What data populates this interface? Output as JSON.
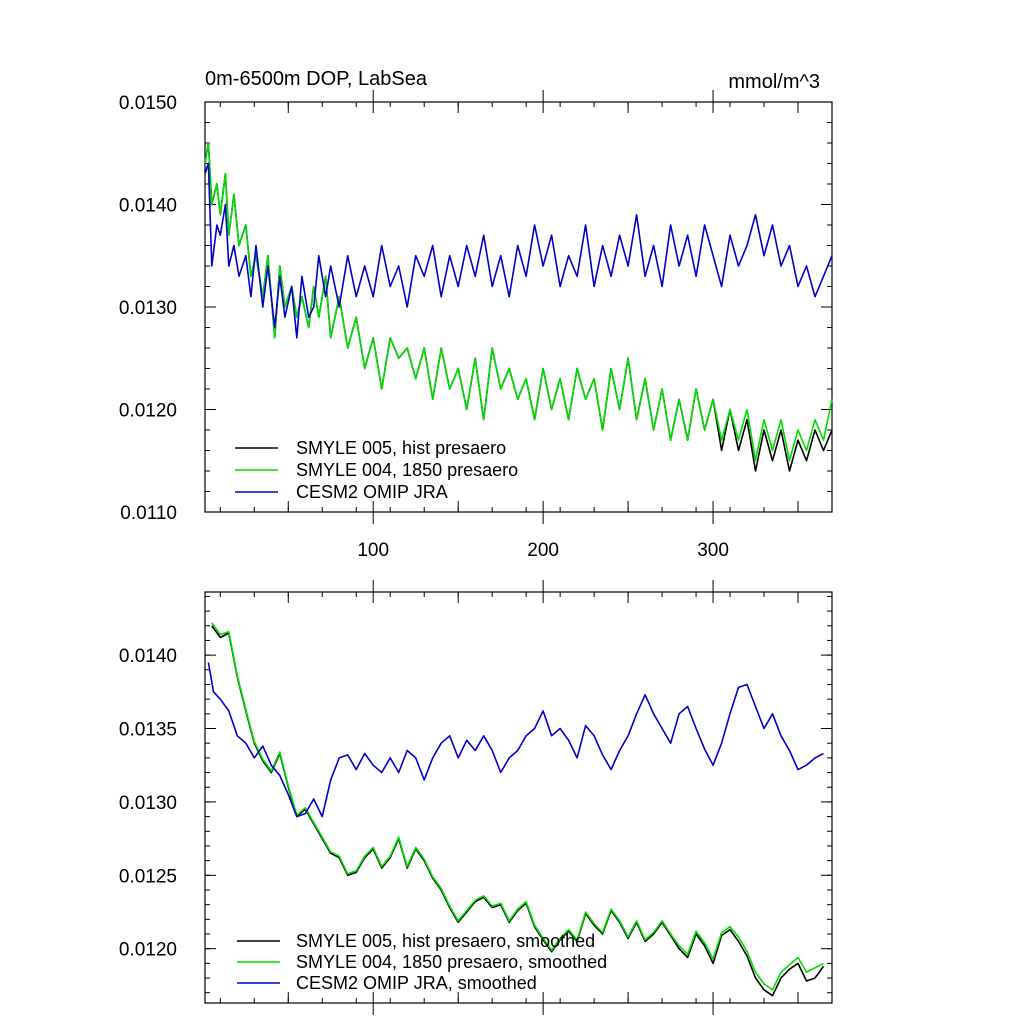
{
  "chart_data": [
    {
      "type": "line",
      "title": "0m-6500m DOP, LabSea",
      "units": "mmol/m^3",
      "xlim": [
        1,
        370
      ],
      "ylim": [
        0.011,
        0.015
      ],
      "x_ticks": [
        100,
        200,
        300
      ],
      "x_tick_labels": [
        "100",
        "200",
        "300"
      ],
      "y_ticks": [
        0.011,
        0.012,
        0.013,
        0.014,
        0.015
      ],
      "y_tick_labels": [
        "0.0110",
        "0.0120",
        "0.0130",
        "0.0140",
        "0.0150"
      ],
      "legend_position": "bottom-left",
      "series": [
        {
          "name": "SMYLE 005, hist presaero",
          "color": "#000000",
          "x": [
            1,
            3,
            5,
            8,
            10,
            13,
            15,
            18,
            21,
            25,
            28,
            31,
            35,
            38,
            42,
            45,
            48,
            52,
            55,
            58,
            62,
            65,
            68,
            72,
            75,
            80,
            85,
            90,
            95,
            100,
            105,
            110,
            115,
            120,
            125,
            130,
            135,
            140,
            145,
            150,
            155,
            160,
            165,
            170,
            175,
            180,
            185,
            190,
            195,
            200,
            205,
            210,
            215,
            220,
            225,
            230,
            235,
            240,
            245,
            250,
            255,
            260,
            265,
            270,
            275,
            280,
            285,
            290,
            295,
            300,
            305,
            310,
            315,
            320,
            325,
            330,
            335,
            340,
            345,
            350,
            355,
            360,
            365,
            370
          ],
          "values": [
            0.0144,
            0.0146,
            0.014,
            0.0142,
            0.0139,
            0.0143,
            0.0137,
            0.0141,
            0.0136,
            0.0138,
            0.0133,
            0.0135,
            0.0131,
            0.0135,
            0.0127,
            0.0134,
            0.013,
            0.0132,
            0.0129,
            0.0131,
            0.0128,
            0.0132,
            0.0129,
            0.0133,
            0.0127,
            0.0131,
            0.0126,
            0.0129,
            0.0124,
            0.0127,
            0.0122,
            0.0127,
            0.0125,
            0.0126,
            0.0123,
            0.0126,
            0.0121,
            0.0126,
            0.0122,
            0.0124,
            0.012,
            0.0125,
            0.0119,
            0.0126,
            0.0122,
            0.0124,
            0.0121,
            0.0123,
            0.0119,
            0.0124,
            0.012,
            0.0123,
            0.0119,
            0.0124,
            0.0121,
            0.0123,
            0.0118,
            0.0124,
            0.012,
            0.0125,
            0.0119,
            0.0123,
            0.0118,
            0.0122,
            0.0117,
            0.0121,
            0.0117,
            0.0122,
            0.0118,
            0.0121,
            0.0116,
            0.012,
            0.0116,
            0.0119,
            0.0114,
            0.0118,
            0.0115,
            0.0118,
            0.0114,
            0.0117,
            0.0115,
            0.0118,
            0.0116,
            0.0118
          ]
        },
        {
          "name": "SMYLE 004, 1850 presaero",
          "color": "#00dd00",
          "x": [
            1,
            3,
            5,
            8,
            10,
            13,
            15,
            18,
            21,
            25,
            28,
            31,
            35,
            38,
            42,
            45,
            48,
            52,
            55,
            58,
            62,
            65,
            68,
            72,
            75,
            80,
            85,
            90,
            95,
            100,
            105,
            110,
            115,
            120,
            125,
            130,
            135,
            140,
            145,
            150,
            155,
            160,
            165,
            170,
            175,
            180,
            185,
            190,
            195,
            200,
            205,
            210,
            215,
            220,
            225,
            230,
            235,
            240,
            245,
            250,
            255,
            260,
            265,
            270,
            275,
            280,
            285,
            290,
            295,
            300,
            305,
            310,
            315,
            320,
            325,
            330,
            335,
            340,
            345,
            350,
            355,
            360,
            365,
            370
          ],
          "values": [
            0.0144,
            0.0146,
            0.014,
            0.0142,
            0.0139,
            0.0143,
            0.0137,
            0.0141,
            0.0136,
            0.0138,
            0.0133,
            0.0135,
            0.0131,
            0.0135,
            0.0127,
            0.0134,
            0.013,
            0.0132,
            0.0129,
            0.0131,
            0.0128,
            0.0132,
            0.0129,
            0.0133,
            0.0127,
            0.0131,
            0.0126,
            0.0129,
            0.0124,
            0.0127,
            0.0122,
            0.0127,
            0.0125,
            0.0126,
            0.0123,
            0.0126,
            0.0121,
            0.0126,
            0.0122,
            0.0124,
            0.012,
            0.0125,
            0.0119,
            0.0126,
            0.0122,
            0.0124,
            0.0121,
            0.0123,
            0.0119,
            0.0124,
            0.012,
            0.0123,
            0.0119,
            0.0124,
            0.0121,
            0.0123,
            0.0118,
            0.0124,
            0.012,
            0.0125,
            0.0119,
            0.0123,
            0.0118,
            0.0122,
            0.0117,
            0.0121,
            0.0117,
            0.0122,
            0.0118,
            0.0121,
            0.0117,
            0.012,
            0.0117,
            0.012,
            0.0115,
            0.0119,
            0.0116,
            0.0119,
            0.0115,
            0.0118,
            0.0116,
            0.0119,
            0.0117,
            0.0121
          ]
        },
        {
          "name": "CESM2 OMIP JRA",
          "color": "#0000cc",
          "x": [
            1,
            3,
            5,
            8,
            10,
            13,
            15,
            18,
            21,
            25,
            28,
            31,
            35,
            38,
            42,
            45,
            48,
            52,
            55,
            58,
            62,
            65,
            68,
            72,
            75,
            80,
            85,
            90,
            95,
            100,
            105,
            110,
            115,
            120,
            125,
            130,
            135,
            140,
            145,
            150,
            155,
            160,
            165,
            170,
            175,
            180,
            185,
            190,
            195,
            200,
            205,
            210,
            215,
            220,
            225,
            230,
            235,
            240,
            245,
            250,
            255,
            260,
            265,
            270,
            275,
            280,
            285,
            290,
            295,
            300,
            305,
            310,
            315,
            320,
            325,
            330,
            335,
            340,
            345,
            350,
            355,
            360,
            365,
            370
          ],
          "values": [
            0.0143,
            0.0144,
            0.0134,
            0.0138,
            0.0137,
            0.014,
            0.0134,
            0.0136,
            0.0133,
            0.0135,
            0.0131,
            0.0136,
            0.013,
            0.0134,
            0.0128,
            0.0133,
            0.0129,
            0.0132,
            0.0127,
            0.0133,
            0.0129,
            0.013,
            0.0135,
            0.0131,
            0.0134,
            0.013,
            0.0135,
            0.0131,
            0.0134,
            0.0131,
            0.0136,
            0.0132,
            0.0134,
            0.013,
            0.0135,
            0.0133,
            0.0136,
            0.0131,
            0.0135,
            0.0132,
            0.0136,
            0.0133,
            0.0137,
            0.0132,
            0.0135,
            0.0131,
            0.0136,
            0.0133,
            0.0138,
            0.0134,
            0.0137,
            0.0132,
            0.0135,
            0.0133,
            0.0138,
            0.0132,
            0.0136,
            0.0133,
            0.0137,
            0.0134,
            0.0139,
            0.0133,
            0.0136,
            0.0132,
            0.0138,
            0.0134,
            0.0137,
            0.0133,
            0.0138,
            0.0135,
            0.0132,
            0.0137,
            0.0134,
            0.0136,
            0.0139,
            0.0135,
            0.0138,
            0.0134,
            0.0136,
            0.0132,
            0.0134,
            0.0131,
            0.0133,
            0.0135
          ]
        }
      ]
    },
    {
      "type": "line",
      "title": "",
      "units": "",
      "xlim": [
        1,
        370
      ],
      "ylim": [
        0.01163,
        0.01443
      ],
      "x_ticks": [
        100,
        200,
        300
      ],
      "x_tick_labels": [
        "",
        "",
        ""
      ],
      "y_ticks": [
        0.012,
        0.0125,
        0.013,
        0.0135,
        0.014
      ],
      "y_tick_labels": [
        "0.0120",
        "0.0125",
        "0.0130",
        "0.0135",
        "0.0140"
      ],
      "legend_position": "bottom-left",
      "series": [
        {
          "name": "SMYLE 005, hist presaero, smoothed",
          "color": "#000000",
          "x": [
            5,
            10,
            15,
            20,
            25,
            30,
            35,
            40,
            45,
            50,
            55,
            60,
            65,
            70,
            75,
            80,
            85,
            90,
            95,
            100,
            105,
            110,
            115,
            120,
            125,
            130,
            135,
            140,
            145,
            150,
            155,
            160,
            165,
            170,
            175,
            180,
            185,
            190,
            195,
            200,
            205,
            210,
            215,
            220,
            225,
            230,
            235,
            240,
            245,
            250,
            255,
            260,
            265,
            270,
            275,
            280,
            285,
            290,
            295,
            300,
            305,
            310,
            315,
            320,
            325,
            330,
            335,
            340,
            345,
            350,
            355,
            360,
            365
          ],
          "values": [
            0.0142,
            0.01412,
            0.01415,
            0.01385,
            0.01362,
            0.0134,
            0.01328,
            0.0132,
            0.01333,
            0.0131,
            0.0129,
            0.01295,
            0.01285,
            0.01275,
            0.01265,
            0.01262,
            0.0125,
            0.01252,
            0.01262,
            0.01268,
            0.01255,
            0.01262,
            0.01275,
            0.01255,
            0.01268,
            0.0126,
            0.01248,
            0.0124,
            0.01228,
            0.01218,
            0.01225,
            0.01232,
            0.01235,
            0.01228,
            0.0123,
            0.01218,
            0.01226,
            0.01231,
            0.01215,
            0.01206,
            0.01198,
            0.01206,
            0.01212,
            0.01205,
            0.01224,
            0.01216,
            0.0121,
            0.01226,
            0.01218,
            0.01207,
            0.01218,
            0.01205,
            0.0121,
            0.01218,
            0.01209,
            0.012,
            0.01194,
            0.0121,
            0.01202,
            0.0119,
            0.01209,
            0.01213,
            0.01205,
            0.01195,
            0.0118,
            0.01172,
            0.01168,
            0.0118,
            0.01186,
            0.0119,
            0.01178,
            0.0118,
            0.01188
          ]
        },
        {
          "name": "SMYLE 004, 1850 presaero, smoothed",
          "color": "#00dd00",
          "x": [
            5,
            10,
            15,
            20,
            25,
            30,
            35,
            40,
            45,
            50,
            55,
            60,
            65,
            70,
            75,
            80,
            85,
            90,
            95,
            100,
            105,
            110,
            115,
            120,
            125,
            130,
            135,
            140,
            145,
            150,
            155,
            160,
            165,
            170,
            175,
            180,
            185,
            190,
            195,
            200,
            205,
            210,
            215,
            220,
            225,
            230,
            235,
            240,
            245,
            250,
            255,
            260,
            265,
            270,
            275,
            280,
            285,
            290,
            295,
            300,
            305,
            310,
            315,
            320,
            325,
            330,
            335,
            340,
            345,
            350,
            355,
            360,
            365
          ],
          "values": [
            0.01422,
            0.01414,
            0.01416,
            0.01386,
            0.01363,
            0.01341,
            0.01329,
            0.01321,
            0.01334,
            0.01311,
            0.01291,
            0.01296,
            0.01286,
            0.01276,
            0.01266,
            0.01263,
            0.01251,
            0.01253,
            0.01263,
            0.01269,
            0.01256,
            0.01263,
            0.01276,
            0.01256,
            0.01269,
            0.01261,
            0.01249,
            0.01241,
            0.01229,
            0.01219,
            0.01226,
            0.01233,
            0.01236,
            0.01229,
            0.01231,
            0.01219,
            0.01227,
            0.01232,
            0.01216,
            0.01207,
            0.01199,
            0.01207,
            0.01213,
            0.01206,
            0.01225,
            0.01217,
            0.01211,
            0.01227,
            0.01219,
            0.01208,
            0.01219,
            0.01206,
            0.01211,
            0.01219,
            0.0121,
            0.01202,
            0.01196,
            0.01212,
            0.01204,
            0.01193,
            0.01211,
            0.01215,
            0.01208,
            0.01198,
            0.01184,
            0.01176,
            0.01172,
            0.01184,
            0.01189,
            0.01194,
            0.01184,
            0.01187,
            0.0119
          ]
        },
        {
          "name": "CESM2 OMIP JRA, smoothed",
          "color": "#0000cc",
          "x": [
            3,
            6,
            10,
            15,
            20,
            25,
            30,
            35,
            40,
            45,
            50,
            55,
            60,
            65,
            70,
            75,
            80,
            85,
            90,
            95,
            100,
            105,
            110,
            115,
            120,
            125,
            130,
            135,
            140,
            145,
            150,
            155,
            160,
            165,
            170,
            175,
            180,
            185,
            190,
            195,
            200,
            205,
            210,
            215,
            220,
            225,
            230,
            235,
            240,
            245,
            250,
            255,
            260,
            265,
            270,
            275,
            280,
            285,
            290,
            295,
            300,
            305,
            310,
            315,
            320,
            325,
            330,
            335,
            340,
            345,
            350,
            355,
            360,
            365
          ],
          "values": [
            0.01395,
            0.01375,
            0.0137,
            0.01362,
            0.01345,
            0.0134,
            0.0133,
            0.01338,
            0.01325,
            0.01318,
            0.01305,
            0.0129,
            0.01292,
            0.01302,
            0.0129,
            0.01315,
            0.0133,
            0.01332,
            0.01322,
            0.01333,
            0.01325,
            0.0132,
            0.0133,
            0.0132,
            0.01335,
            0.0133,
            0.01315,
            0.0133,
            0.0134,
            0.01345,
            0.0133,
            0.01342,
            0.01335,
            0.01345,
            0.01335,
            0.0132,
            0.0133,
            0.01335,
            0.01345,
            0.0135,
            0.01362,
            0.01345,
            0.0135,
            0.01342,
            0.0133,
            0.01352,
            0.01345,
            0.01332,
            0.01322,
            0.01335,
            0.01345,
            0.0136,
            0.01373,
            0.0136,
            0.0135,
            0.0134,
            0.0136,
            0.01365,
            0.0135,
            0.01336,
            0.01325,
            0.0134,
            0.0136,
            0.01378,
            0.0138,
            0.01365,
            0.0135,
            0.0136,
            0.01345,
            0.01335,
            0.01322,
            0.01325,
            0.0133,
            0.01333
          ]
        }
      ]
    }
  ]
}
